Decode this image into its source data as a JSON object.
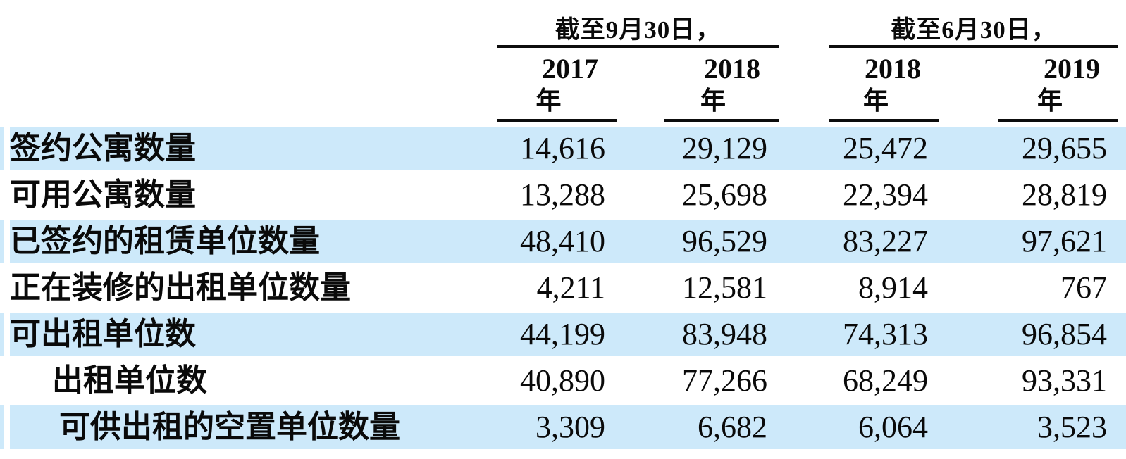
{
  "colors": {
    "row_highlight": "#cde9fa",
    "rule": "#0d0d0d",
    "text": "#0a0a0a",
    "background": "#ffffff"
  },
  "table": {
    "column_groups": [
      {
        "title": "截至9月30日，",
        "years": [
          "2017",
          "2018"
        ]
      },
      {
        "title": "截至6月30日，",
        "years": [
          "2018",
          "2019"
        ]
      }
    ],
    "year_suffix": "年",
    "rows": [
      {
        "label": "签约公寓数量",
        "indent": 0,
        "highlight": true,
        "values": [
          "14,616",
          "29,129",
          "25,472",
          "29,655"
        ]
      },
      {
        "label": "可用公寓数量",
        "indent": 0,
        "highlight": false,
        "values": [
          "13,288",
          "25,698",
          "22,394",
          "28,819"
        ]
      },
      {
        "label": "已签约的租赁单位数量",
        "indent": 0,
        "highlight": true,
        "values": [
          "48,410",
          "96,529",
          "83,227",
          "97,621"
        ]
      },
      {
        "label": "正在装修的出租单位数量",
        "indent": 0,
        "highlight": false,
        "values": [
          "4,211",
          "12,581",
          "8,914",
          "767"
        ]
      },
      {
        "label": "可出租单位数",
        "indent": 0,
        "highlight": true,
        "values": [
          "44,199",
          "83,948",
          "74,313",
          "96,854"
        ]
      },
      {
        "label": "出租单位数",
        "indent": 1,
        "highlight": false,
        "values": [
          "40,890",
          "77,266",
          "68,249",
          "93,331"
        ]
      },
      {
        "label": "可供出租的空置单位数量",
        "indent": 2,
        "highlight": true,
        "values": [
          "3,309",
          "6,682",
          "6,064",
          "3,523"
        ]
      }
    ]
  }
}
